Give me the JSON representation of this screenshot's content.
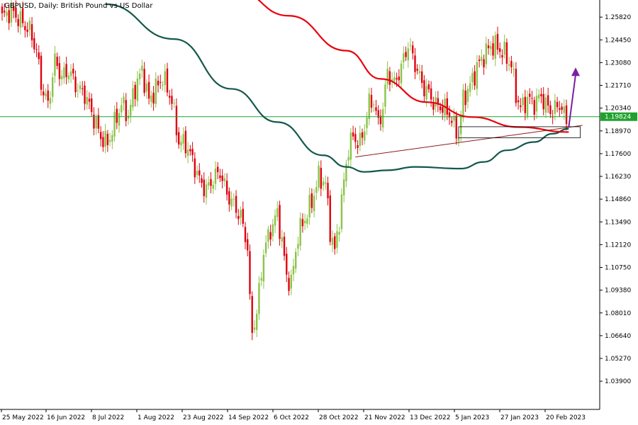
{
  "chart_title": "GBPUSD, Daily:  British Pound vs US Dollar",
  "colors": {
    "bull": "#8BC34A",
    "bear": "#E0000C",
    "ma_fast": "#E8000D",
    "ma_slow": "#12584A",
    "hline": "#1FA12E",
    "price_box": "#1FA12E",
    "trendline": "#8B1A1A",
    "arrow": "#7B1FA2",
    "axis": "#000000"
  },
  "chart_data": {
    "type": "candlestick",
    "title": "GBPUSD, Daily:  British Pound vs US Dollar",
    "ylim": [
      1.022,
      1.2685
    ],
    "y_ticks": [
      "1.25820",
      "1.24450",
      "1.23080",
      "1.21710",
      "1.20340",
      "1.18970",
      "1.17600",
      "1.16230",
      "1.14860",
      "1.13490",
      "1.12120",
      "1.10750",
      "1.09380",
      "1.08010",
      "1.06640",
      "1.05270",
      "1.03900"
    ],
    "x_ticks": [
      "25 May 2022",
      "16 Jun 2022",
      "8 Jul 2022",
      "1 Aug 2022",
      "23 Aug 2022",
      "14 Sep 2022",
      "6 Oct 2022",
      "28 Oct 2022",
      "21 Nov 2022",
      "13 Dec 2022",
      "5 Jan 2023",
      "27 Jan 2023",
      "20 Feb 2023"
    ],
    "current_price": "1.19824",
    "current_price_value": 1.19824,
    "close_anchors": [
      [
        0,
        1.258
      ],
      [
        4,
        1.262
      ],
      [
        8,
        1.256
      ],
      [
        12,
        1.25
      ],
      [
        15,
        1.238
      ],
      [
        17,
        1.218
      ],
      [
        20,
        1.205
      ],
      [
        23,
        1.232
      ],
      [
        26,
        1.222
      ],
      [
        29,
        1.226
      ],
      [
        33,
        1.215
      ],
      [
        36,
        1.212
      ],
      [
        40,
        1.197
      ],
      [
        43,
        1.186
      ],
      [
        46,
        1.182
      ],
      [
        49,
        1.194
      ],
      [
        52,
        1.206
      ],
      [
        55,
        1.199
      ],
      [
        58,
        1.216
      ],
      [
        61,
        1.226
      ],
      [
        64,
        1.208
      ],
      [
        67,
        1.215
      ],
      [
        70,
        1.222
      ],
      [
        74,
        1.208
      ],
      [
        77,
        1.183
      ],
      [
        80,
        1.182
      ],
      [
        83,
        1.172
      ],
      [
        86,
        1.16
      ],
      [
        89,
        1.154
      ],
      [
        92,
        1.161
      ],
      [
        95,
        1.165
      ],
      [
        98,
        1.152
      ],
      [
        101,
        1.145
      ],
      [
        104,
        1.138
      ],
      [
        107,
        1.12
      ],
      [
        108,
        1.086
      ],
      [
        109,
        1.069
      ],
      [
        111,
        1.08
      ],
      [
        114,
        1.117
      ],
      [
        117,
        1.13
      ],
      [
        120,
        1.14
      ],
      [
        122,
        1.123
      ],
      [
        124,
        1.102
      ],
      [
        126,
        1.098
      ],
      [
        129,
        1.127
      ],
      [
        132,
        1.137
      ],
      [
        135,
        1.147
      ],
      [
        138,
        1.162
      ],
      [
        141,
        1.158
      ],
      [
        143,
        1.13
      ],
      [
        145,
        1.117
      ],
      [
        147,
        1.136
      ],
      [
        149,
        1.159
      ],
      [
        151,
        1.18
      ],
      [
        153,
        1.186
      ],
      [
        156,
        1.182
      ],
      [
        158,
        1.192
      ],
      [
        160,
        1.206
      ],
      [
        162,
        1.208
      ],
      [
        164,
        1.193
      ],
      [
        166,
        1.204
      ],
      [
        168,
        1.225
      ],
      [
        171,
        1.218
      ],
      [
        174,
        1.228
      ],
      [
        177,
        1.242
      ],
      [
        180,
        1.23
      ],
      [
        183,
        1.218
      ],
      [
        186,
        1.212
      ],
      [
        189,
        1.205
      ],
      [
        192,
        1.204
      ],
      [
        195,
        1.2
      ],
      [
        197,
        1.192
      ],
      [
        199,
        1.187
      ],
      [
        201,
        1.209
      ],
      [
        204,
        1.217
      ],
      [
        207,
        1.228
      ],
      [
        210,
        1.235
      ],
      [
        213,
        1.241
      ],
      [
        216,
        1.24
      ],
      [
        219,
        1.236
      ],
      [
        222,
        1.229
      ],
      [
        224,
        1.212
      ],
      [
        226,
        1.203
      ],
      [
        229,
        1.209
      ],
      [
        232,
        1.206
      ],
      [
        235,
        1.211
      ],
      [
        237,
        1.205
      ],
      [
        240,
        1.201
      ],
      [
        243,
        1.206
      ],
      [
        246,
        1.196
      ]
    ],
    "ma_fast_points": [
      [
        101,
        1.275
      ],
      [
        125,
        1.259
      ],
      [
        150,
        1.238
      ],
      [
        165,
        1.221
      ],
      [
        185,
        1.207
      ],
      [
        205,
        1.198
      ],
      [
        225,
        1.192
      ],
      [
        247,
        1.189
      ]
    ],
    "ma_slow_points": [
      [
        45,
        1.266
      ],
      [
        75,
        1.245
      ],
      [
        100,
        1.215
      ],
      [
        120,
        1.195
      ],
      [
        140,
        1.175
      ],
      [
        150,
        1.168
      ],
      [
        158,
        1.165
      ],
      [
        168,
        1.166
      ],
      [
        180,
        1.168
      ],
      [
        200,
        1.167
      ],
      [
        210,
        1.171
      ],
      [
        220,
        1.178
      ],
      [
        232,
        1.183
      ],
      [
        240,
        1.188
      ],
      [
        247,
        1.191
      ]
    ],
    "trendline": [
      [
        154,
        1.174
      ],
      [
        253,
        1.193
      ]
    ],
    "support_box": [
      [
        199,
        1.1855
      ],
      [
        252,
        1.1922
      ]
    ],
    "arrow": [
      [
        247,
        1.192
      ],
      [
        250,
        1.227
      ]
    ]
  }
}
